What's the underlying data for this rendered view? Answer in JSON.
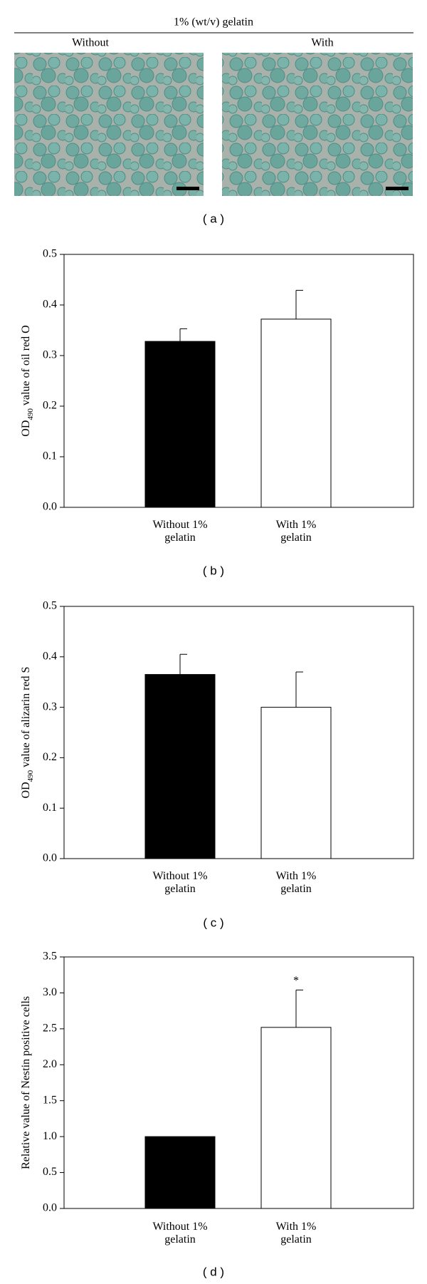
{
  "figure_a": {
    "title": "1% (wt/v) gelatin",
    "labels": [
      "Without",
      "With"
    ],
    "caption": "( a )"
  },
  "chart_data": [
    {
      "type": "bar",
      "ylabel": {
        "main": "OD",
        "subscript": "490",
        "rest": " value of oil red O"
      },
      "categories": [
        "Without 1%\ngelatin",
        "With 1%\ngelatin"
      ],
      "values": [
        0.328,
        0.372
      ],
      "errors": [
        0.025,
        0.057
      ],
      "colors": [
        "#000000",
        "#ffffff"
      ],
      "ylim": [
        0,
        0.5
      ],
      "yticks": [
        {
          "value": 0,
          "label": "0.0"
        },
        0.1,
        0.2,
        0.3,
        0.4,
        0.5
      ],
      "caption": "( b )"
    },
    {
      "type": "bar",
      "ylabel": {
        "main": "OD",
        "subscript": "490",
        "rest": " value of alizarin red S"
      },
      "categories": [
        "Without 1%\ngelatin",
        "With 1%\ngelatin"
      ],
      "values": [
        0.365,
        0.3
      ],
      "errors": [
        0.04,
        0.07
      ],
      "colors": [
        "#000000",
        "#ffffff"
      ],
      "ylim": [
        0,
        0.5
      ],
      "yticks": [
        {
          "value": 0,
          "label": "0.0"
        },
        0.1,
        0.2,
        0.3,
        0.4,
        0.5
      ],
      "caption": "( c )"
    },
    {
      "type": "bar",
      "ylabel": {
        "main": "Relative value of Nestin positive cells"
      },
      "categories": [
        "Without 1%\ngelatin",
        "With 1%\ngelatin"
      ],
      "values": [
        1,
        2.52
      ],
      "errors": [
        null,
        0.52
      ],
      "colors": [
        "#000000",
        "#ffffff"
      ],
      "ylim": [
        0,
        3.5
      ],
      "annotation": "*",
      "yticks": [
        {
          "value": 0,
          "label": "0.0"
        },
        0.5,
        {
          "value": 1,
          "label": "1.0"
        },
        1.5,
        {
          "value": 2,
          "label": "2.0"
        },
        2.5,
        {
          "value": 3,
          "label": "3.0"
        },
        3.5
      ],
      "caption": "( d )"
    }
  ]
}
